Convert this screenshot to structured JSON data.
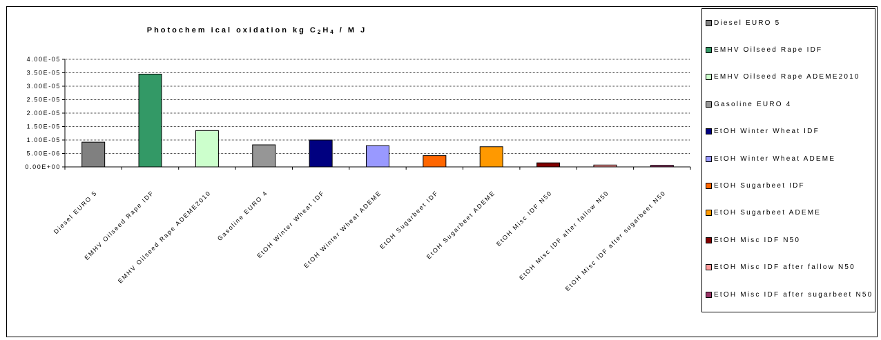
{
  "chart_data": {
    "type": "bar",
    "title": "Photochemical oxidation kg C2H4 / MJ",
    "title_parts": {
      "pre": "Photochem ical oxidation kg C",
      "sub1": "2",
      "mid": "H",
      "sub2": "4",
      "post": " / M J"
    },
    "categories": [
      "Diesel EURO 5",
      "EMHV Oilseed Rape IDF",
      "EMHV Oilseed Rape ADEME2010",
      "Gasoline EURO 4",
      "EtOH Winter Wheat IDF",
      "EtOH Winter Wheat ADEME",
      "EtOH Sugarbeet IDF",
      "EtOH Sugarbeet ADEME",
      "EtOH Misc IDF N50",
      "EtOH Misc IDF after fallow N50",
      "EtOH Misc IDF after sugarbeet N50"
    ],
    "values": [
      9.2e-06,
      3.45e-05,
      1.35e-05,
      8.2e-06,
      1e-05,
      7.9e-06,
      4.2e-06,
      7.5e-06,
      1.5e-06,
      7e-07,
      6e-07
    ],
    "colors": [
      "#808080",
      "#339966",
      "#ccffcc",
      "#969696",
      "#000080",
      "#9999ff",
      "#ff6600",
      "#ff9900",
      "#800000",
      "#ff9999",
      "#993366"
    ],
    "ylim": [
      0,
      4e-05
    ],
    "yticks": [
      0,
      5e-06,
      1e-05,
      1.5e-05,
      2e-05,
      2.5e-05,
      3e-05,
      3.5e-05,
      4e-05
    ],
    "ytick_labels": [
      "0.00E+00",
      "5.00E-06",
      "1.00E-05",
      "1.50E-05",
      "2.00E-05",
      "2.50E-05",
      "3.00E-05",
      "3.50E-05",
      "4.00E-05"
    ],
    "grid": true,
    "legend": "right"
  },
  "legend_items": [
    "Diesel EURO 5",
    "EMHV Oilseed Rape IDF",
    "EMHV Oilseed Rape ADEME2010",
    "Gasoline EURO 4",
    "EtOH Winter Wheat IDF",
    "EtOH Winter Wheat ADEME",
    "EtOH Sugarbeet IDF",
    "EtOH Sugarbeet ADEME",
    "EtOH Misc IDF N50",
    "EtOH Misc IDF after fallow N50",
    "EtOH Misc IDF after sugarbeet N50"
  ]
}
